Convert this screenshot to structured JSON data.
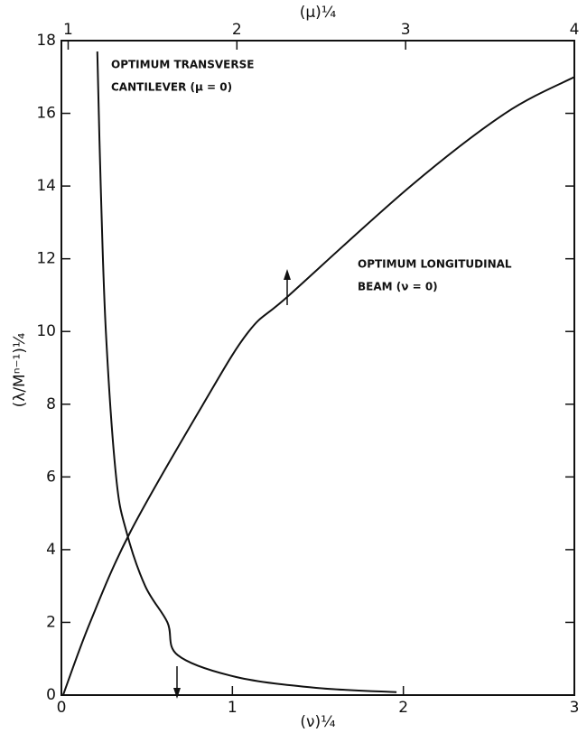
{
  "chart_data": {
    "type": "line",
    "x_label": "(ν)¼",
    "x2_label": "(μ)¼",
    "y_label": "(λ/Mⁿ⁻¹)¼",
    "xlim": [
      0,
      3
    ],
    "xticks": [
      0,
      1,
      2,
      3
    ],
    "x2lim": [
      0.96,
      4
    ],
    "x2ticks": [
      1,
      2,
      3,
      4
    ],
    "ylim": [
      0,
      18
    ],
    "yticks": [
      0,
      2,
      4,
      6,
      8,
      10,
      12,
      14,
      16,
      18
    ],
    "annotations": [
      "OPTIMUM TRANSVERSE",
      "CANTILEVER (μ = 0)",
      "OPTIMUM LONGITUDINAL",
      "BEAM (ν = 0)"
    ],
    "series": [
      {
        "color": "#111111",
        "x": [
          0.21,
          0.23,
          0.26,
          0.32,
          0.38,
          0.49,
          0.62,
          0.68,
          1.02,
          1.49,
          1.96
        ],
        "values": [
          17.7,
          14,
          10,
          6,
          4.5,
          3,
          2,
          1.1,
          0.5,
          0.2,
          0.08
        ]
      },
      {
        "color": "#111111",
        "axis": "x2",
        "x": [
          0.97,
          1.13,
          1.37,
          1.8,
          2.07,
          2.31,
          3.03,
          3.59,
          4
        ],
        "values": [
          0,
          2,
          4.5,
          8,
          10,
          11,
          14,
          16,
          17
        ]
      }
    ]
  }
}
